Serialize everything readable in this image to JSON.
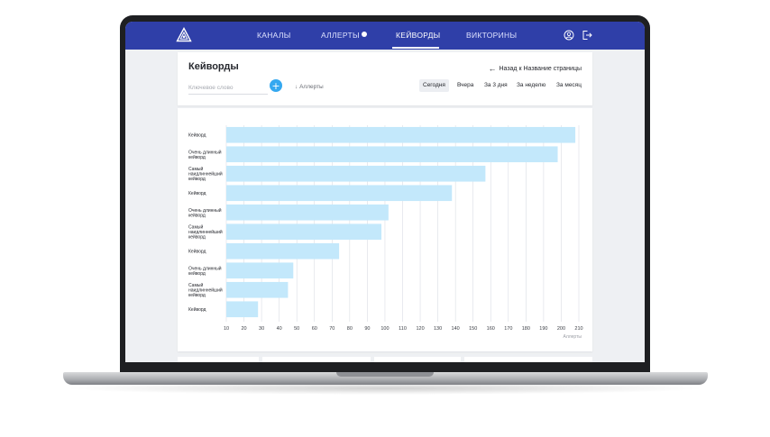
{
  "nav": {
    "items": [
      {
        "label": "КАНАЛЫ",
        "active": false
      },
      {
        "label": "АЛЛЕРТЫ",
        "active": false,
        "badge": true
      },
      {
        "label": "КЕЙВОРДЫ",
        "active": true
      },
      {
        "label": "ВИКТОРИНЫ",
        "active": false
      }
    ],
    "icons": [
      "logo-triangle-icon",
      "user-circle-icon",
      "logout-icon"
    ]
  },
  "header": {
    "title": "Кейворды",
    "back_label": "Назад к Название страницы",
    "keyword_placeholder": "Ключевое слово",
    "add_label": "+",
    "sort_label": "Аллерты",
    "periods": [
      {
        "label": "Сегодня",
        "active": true
      },
      {
        "label": "Вчера",
        "active": false
      },
      {
        "label": "За 3 дня",
        "active": false
      },
      {
        "label": "За неделю",
        "active": false
      },
      {
        "label": "За месяц",
        "active": false
      }
    ]
  },
  "colors": {
    "nav_bg": "#2f3fa8",
    "accent": "#35a8f0",
    "bar": "#c3e8fb",
    "grid": "#d9dde4"
  },
  "chart_data": {
    "type": "bar",
    "orientation": "horizontal",
    "categories": [
      "Кейворд",
      "Очень длинный кейворд",
      "Самый наидлиннейший кейворд",
      "Кейворд",
      "Очень длинный кейворд",
      "Самый наидлиннейший кейворд",
      "Кейворд",
      "Очень длинный кейворд",
      "Самый наидлиннейший кейворд",
      "Кейворд"
    ],
    "category_lines": [
      [
        "Кейворд"
      ],
      [
        "Очень длинный",
        "кейворд"
      ],
      [
        "Самый",
        "наидлиннейший",
        "кейворд"
      ],
      [
        "Кейворд"
      ],
      [
        "Очень длинный",
        "кейворд"
      ],
      [
        "Самый",
        "наидлиннейший",
        "кейворд"
      ],
      [
        "Кейворд"
      ],
      [
        "Очень длинный",
        "кейворд"
      ],
      [
        "Самый",
        "наидлиннейший",
        "кейворд"
      ],
      [
        "Кейворд"
      ]
    ],
    "values": [
      208,
      198,
      157,
      138,
      102,
      98,
      74,
      48,
      45,
      28
    ],
    "xlim": [
      10,
      210
    ],
    "xticks": [
      10,
      20,
      30,
      40,
      50,
      60,
      70,
      80,
      90,
      100,
      110,
      120,
      130,
      140,
      150,
      160,
      170,
      180,
      190,
      200,
      210
    ],
    "xlabel": "Аллерты",
    "title": "",
    "ylabel": "",
    "grid": true
  }
}
